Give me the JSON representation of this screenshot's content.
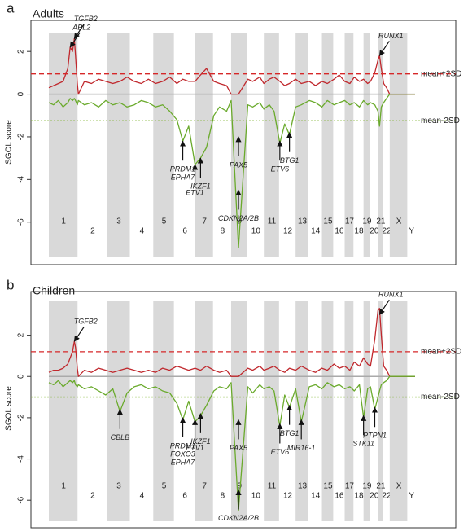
{
  "chart_data": [
    {
      "type": "line",
      "letter": "a",
      "title": "Adults",
      "ylabel": "SGOL score",
      "ylim": [
        -7.5,
        3.0
      ],
      "yticks": [
        -6,
        -4,
        -2,
        0,
        2
      ],
      "xlim": [
        0,
        3090
      ],
      "chromosomes": [
        "1",
        "2",
        "3",
        "4",
        "5",
        "6",
        "7",
        "8",
        "9",
        "10",
        "11",
        "12",
        "13",
        "14",
        "15",
        "16",
        "17",
        "18",
        "19",
        "20",
        "21",
        "22",
        "X",
        "Y"
      ],
      "chromosome_starts": [
        0,
        249,
        492,
        690,
        881,
        1062,
        1233,
        1392,
        1538,
        1679,
        1814,
        1949,
        2082,
        2197,
        2304,
        2406,
        2496,
        2577,
        2655,
        2714,
        2777,
        2825,
        2876,
        3031
      ],
      "x": [
        0,
        40,
        80,
        120,
        160,
        180,
        200,
        215,
        225,
        240,
        249,
        300,
        360,
        420,
        480,
        540,
        600,
        660,
        720,
        780,
        840,
        900,
        960,
        1020,
        1080,
        1130,
        1180,
        1233,
        1280,
        1330,
        1392,
        1440,
        1500,
        1538,
        1600,
        1679,
        1720,
        1780,
        1814,
        1860,
        1900,
        1949,
        1990,
        2030,
        2082,
        2130,
        2197,
        2250,
        2304,
        2350,
        2406,
        2450,
        2496,
        2540,
        2577,
        2620,
        2655,
        2690,
        2714,
        2750,
        2777,
        2790,
        2805,
        2825,
        2850,
        2876,
        3090
      ],
      "series": [
        {
          "color": "#c0282d",
          "values": [
            0.3,
            0.4,
            0.5,
            0.6,
            1.2,
            2.2,
            2.0,
            2.6,
            1.8,
            0.5,
            0,
            0.6,
            0.5,
            0.7,
            0.6,
            0.5,
            0.6,
            0.8,
            0.6,
            0.5,
            0.7,
            0.5,
            0.6,
            0.8,
            0.5,
            0.7,
            0.6,
            0.6,
            0.9,
            1.2,
            0.6,
            0.5,
            0.4,
            0,
            0,
            0.7,
            0.6,
            0.8,
            0.5,
            0.7,
            0.8,
            0.6,
            0.4,
            0.5,
            0.7,
            0.5,
            0.6,
            0.4,
            0.6,
            0.5,
            0.7,
            0.9,
            0.6,
            0.5,
            0.8,
            0.6,
            0.7,
            0.5,
            0.6,
            1.0,
            1.6,
            1.8,
            1.2,
            0.5,
            0.3,
            0,
            0
          ]
        },
        {
          "color": "#6aaa2c",
          "values": [
            -0.4,
            -0.5,
            -0.3,
            -0.6,
            -0.4,
            -0.2,
            -0.3,
            -0.2,
            -0.3,
            -0.5,
            -0.3,
            -0.5,
            -0.4,
            -0.6,
            -0.3,
            -0.5,
            -0.4,
            -0.6,
            -0.5,
            -0.3,
            -0.4,
            -0.6,
            -0.5,
            -0.8,
            -1.2,
            -2.2,
            -1.5,
            -3.3,
            -3.0,
            -2.5,
            -1.0,
            -0.6,
            -0.8,
            -0.3,
            -7.2,
            -0.5,
            -0.6,
            -0.4,
            -0.7,
            -0.5,
            -0.8,
            -2.3,
            -1.4,
            -1.9,
            -0.6,
            -0.5,
            -0.3,
            -0.4,
            -0.6,
            -0.3,
            -0.5,
            -0.4,
            -0.3,
            -0.5,
            -0.4,
            -0.6,
            -0.3,
            -0.5,
            -0.4,
            -0.5,
            -0.8,
            -1.5,
            -0.6,
            -0.4,
            -0.2,
            0,
            0
          ]
        }
      ],
      "hlines": [
        {
          "value": 0.95,
          "label": "mean+2SD",
          "color": "#d62728",
          "style": "dashed"
        },
        {
          "value": -1.25,
          "label": "mean-2SD",
          "color": "#7fb22d",
          "style": "dotted"
        }
      ],
      "annotations": [
        {
          "text": [
            "ABL2"
          ],
          "x": 180,
          "y": 2.2
        },
        {
          "text": [
            "TGFB2"
          ],
          "x": 215,
          "y": 2.6
        },
        {
          "text": [
            "RUNX1"
          ],
          "x": 2790,
          "y": 1.8
        },
        {
          "text": [
            "PRDM1",
            "EPHA7"
          ],
          "x": 1130,
          "y": -2.2
        },
        {
          "text": [
            "ETV1"
          ],
          "x": 1233,
          "y": -3.3
        },
        {
          "text": [
            "IKZF1"
          ],
          "x": 1280,
          "y": -3.0
        },
        {
          "text": [
            "PAX5"
          ],
          "x": 1600,
          "y": -2.0
        },
        {
          "text": [
            "CDKN2A/2B"
          ],
          "x": 1600,
          "y": -4.5
        },
        {
          "text": [
            "ETV6"
          ],
          "x": 1949,
          "y": -2.2
        },
        {
          "text": [
            "BTG1"
          ],
          "x": 2030,
          "y": -1.8
        }
      ]
    },
    {
      "type": "line",
      "letter": "b",
      "title": "Children",
      "ylabel": "SGOL  score",
      "ylim": [
        -6.9,
        3.8
      ],
      "yticks": [
        -6,
        -4,
        -2,
        0,
        2
      ],
      "xlim": [
        0,
        3090
      ],
      "chromosomes": [
        "1",
        "2",
        "3",
        "4",
        "5",
        "6",
        "7",
        "8",
        "9",
        "10",
        "11",
        "12",
        "13",
        "14",
        "15",
        "16",
        "17",
        "18",
        "19",
        "20",
        "21",
        "22",
        "X",
        "Y"
      ],
      "chromosome_starts": [
        0,
        249,
        492,
        690,
        881,
        1062,
        1233,
        1392,
        1538,
        1679,
        1814,
        1949,
        2082,
        2197,
        2304,
        2406,
        2496,
        2577,
        2655,
        2714,
        2777,
        2825,
        2876,
        3031
      ],
      "x": [
        0,
        40,
        80,
        120,
        160,
        180,
        200,
        215,
        225,
        240,
        249,
        300,
        360,
        420,
        480,
        540,
        600,
        660,
        720,
        780,
        840,
        900,
        960,
        1020,
        1080,
        1130,
        1180,
        1233,
        1280,
        1330,
        1392,
        1440,
        1500,
        1538,
        1600,
        1679,
        1720,
        1780,
        1814,
        1860,
        1900,
        1949,
        1990,
        2030,
        2082,
        2130,
        2197,
        2250,
        2304,
        2350,
        2406,
        2450,
        2496,
        2540,
        2577,
        2620,
        2655,
        2690,
        2714,
        2750,
        2777,
        2790,
        2805,
        2825,
        2850,
        2876,
        3090
      ],
      "series": [
        {
          "color": "#c0282d",
          "values": [
            0.2,
            0.3,
            0.3,
            0.4,
            0.6,
            0.9,
            1.2,
            1.7,
            1.4,
            0.4,
            0,
            0.3,
            0.2,
            0.4,
            0.3,
            0.2,
            0.3,
            0.4,
            0.3,
            0.2,
            0.3,
            0.2,
            0.4,
            0.3,
            0.5,
            0.4,
            0.3,
            0.4,
            0.3,
            0.5,
            0.3,
            0.2,
            0.3,
            0,
            0,
            0.4,
            0.3,
            0.5,
            0.3,
            0.4,
            0.5,
            0.3,
            0.2,
            0.4,
            0.3,
            0.5,
            0.3,
            0.2,
            0.4,
            0.3,
            0.6,
            0.4,
            0.5,
            0.3,
            0.7,
            0.5,
            0.9,
            0.6,
            0.5,
            1.8,
            3.2,
            3.3,
            2.0,
            0.5,
            0.3,
            0,
            0
          ]
        },
        {
          "color": "#6aaa2c",
          "values": [
            -0.3,
            -0.4,
            -0.2,
            -0.5,
            -0.3,
            -0.2,
            -0.3,
            -0.2,
            -0.4,
            -0.5,
            -0.4,
            -0.6,
            -0.5,
            -0.7,
            -0.9,
            -0.6,
            -1.7,
            -0.8,
            -0.5,
            -0.4,
            -0.6,
            -0.5,
            -0.7,
            -0.8,
            -1.3,
            -2.1,
            -1.2,
            -2.2,
            -1.9,
            -1.4,
            -0.7,
            -0.5,
            -0.6,
            -0.3,
            -6.5,
            -0.5,
            -0.8,
            -0.4,
            -0.6,
            -0.5,
            -0.7,
            -2.4,
            -0.9,
            -1.5,
            -0.6,
            -2.2,
            -0.5,
            -0.4,
            -0.6,
            -0.3,
            -0.5,
            -0.4,
            -0.6,
            -0.5,
            -0.7,
            -0.4,
            -2.0,
            -0.6,
            -0.5,
            -1.6,
            -1.0,
            -0.7,
            -0.4,
            -0.3,
            -0.2,
            0,
            0
          ]
        }
      ],
      "hlines": [
        {
          "value": 1.2,
          "label": "mean+2SD",
          "color": "#d62728",
          "style": "dashed"
        },
        {
          "value": -1.0,
          "label": "mean-2SD",
          "color": "#7fb22d",
          "style": "dotted"
        }
      ],
      "annotations": [
        {
          "text": [
            "TGFB2"
          ],
          "x": 215,
          "y": 1.7
        },
        {
          "text": [
            "RUNX1"
          ],
          "x": 2790,
          "y": 3.0
        },
        {
          "text": [
            "CBLB"
          ],
          "x": 600,
          "y": -1.6
        },
        {
          "text": [
            "PRDM1",
            "FOXO3",
            "EPHA7"
          ],
          "x": 1130,
          "y": -2.0
        },
        {
          "text": [
            "ETV1"
          ],
          "x": 1233,
          "y": -2.1
        },
        {
          "text": [
            "IKZF1"
          ],
          "x": 1280,
          "y": -1.8
        },
        {
          "text": [
            "PAX5"
          ],
          "x": 1600,
          "y": -2.1
        },
        {
          "text": [
            "CDKN2A/2B"
          ],
          "x": 1600,
          "y": -5.5
        },
        {
          "text": [
            "ETV6"
          ],
          "x": 1949,
          "y": -2.3
        },
        {
          "text": [
            "BTG1"
          ],
          "x": 2030,
          "y": -1.4
        },
        {
          "text": [
            "MIR16-1"
          ],
          "x": 2130,
          "y": -2.1
        },
        {
          "text": [
            "STK11"
          ],
          "x": 2655,
          "y": -1.9
        },
        {
          "text": [
            "PTPN1"
          ],
          "x": 2750,
          "y": -1.5
        }
      ]
    }
  ]
}
